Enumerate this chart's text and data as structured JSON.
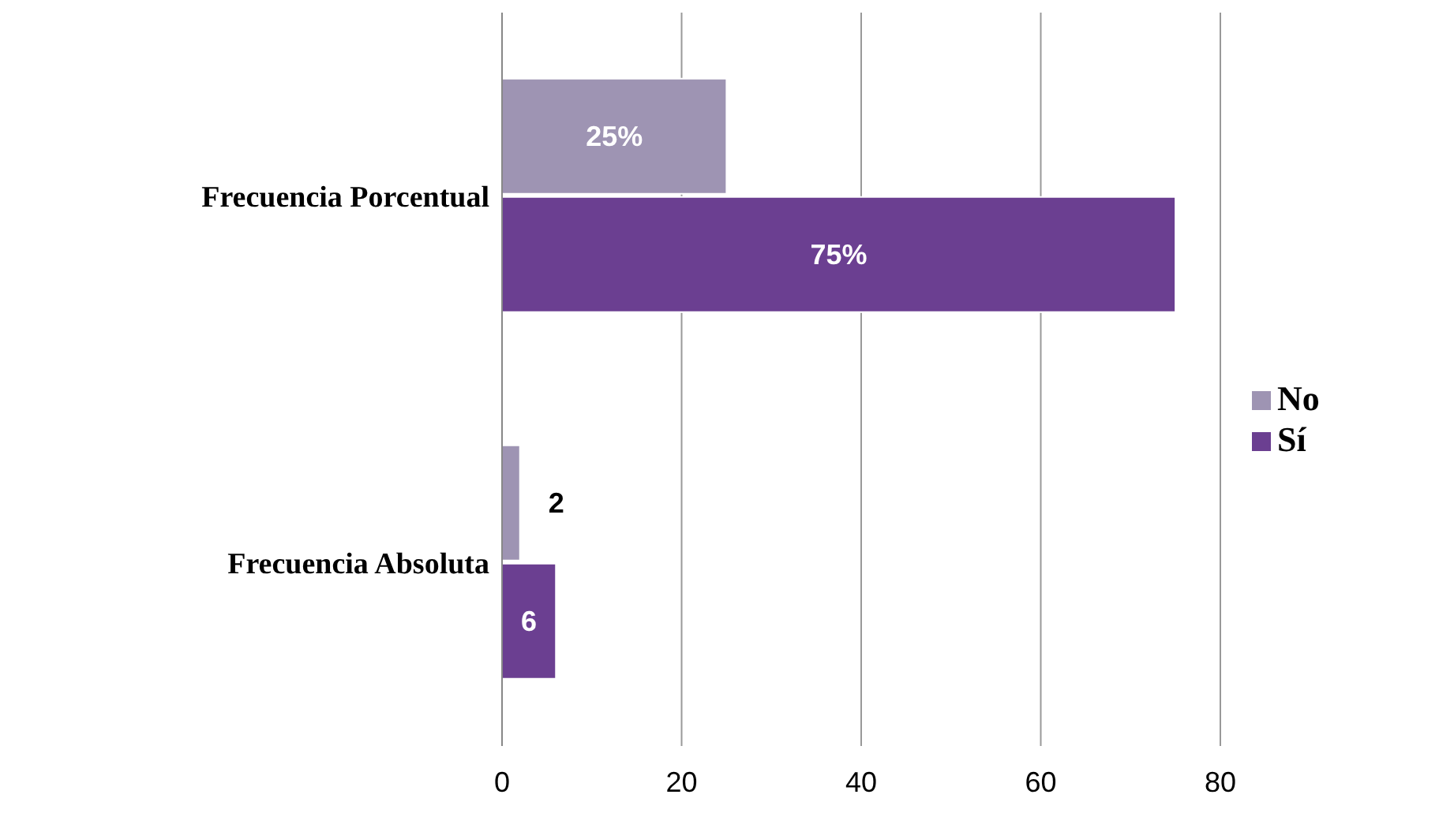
{
  "chart_data": {
    "type": "bar",
    "orientation": "horizontal",
    "categories": [
      "Frecuencia Porcentual",
      "Frecuencia Absoluta"
    ],
    "series": [
      {
        "name": "No",
        "color": "#9e94b3",
        "values": [
          25,
          2
        ],
        "value_labels": [
          "25%",
          "2"
        ]
      },
      {
        "name": "Sí",
        "color": "#6b3f91",
        "values": [
          75,
          6
        ],
        "value_labels": [
          "75%",
          "6"
        ]
      }
    ],
    "xlim": [
      0,
      80
    ],
    "xticks": [
      0,
      20,
      40,
      60,
      80
    ],
    "grid": "x",
    "legend": "right"
  }
}
